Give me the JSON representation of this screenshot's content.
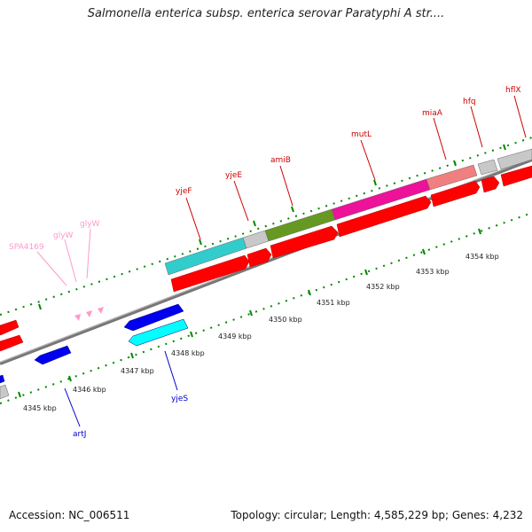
{
  "title": "Salmonella enterica subsp. enterica serovar Paratyphi A str....",
  "footer": {
    "accession": "Accession: NC_006511",
    "summary": "Topology: circular; Length: 4,585,229 bp; Genes: 4,232"
  },
  "scale_labels": [
    "4345 kbp",
    "4346 kbp",
    "4347 kbp",
    "4348 kbp",
    "4349 kbp",
    "4350 kbp",
    "4351 kbp",
    "4352 kbp",
    "4353 kbp",
    "4354 kbp"
  ],
  "gene_labels": [
    {
      "text": "SPA4169",
      "color": "#ff99cc"
    },
    {
      "text": "glyW",
      "color": "#ff99cc"
    },
    {
      "text": "glyW",
      "color": "#ff99cc"
    },
    {
      "text": "yjeF",
      "color": "#cc0000"
    },
    {
      "text": "yjeE",
      "color": "#cc0000"
    },
    {
      "text": "amiB",
      "color": "#cc0000"
    },
    {
      "text": "mutL",
      "color": "#cc0000"
    },
    {
      "text": "miaA",
      "color": "#cc0000"
    },
    {
      "text": "hfq",
      "color": "#cc0000"
    },
    {
      "text": "hflX",
      "color": "#cc0000"
    },
    {
      "text": "yjeS",
      "color": "#0000cc"
    },
    {
      "text": "artJ",
      "color": "#0000cc"
    }
  ],
  "colors": {
    "cds_forward": "#ff0000",
    "cds_reverse": "#0000ff",
    "trna": "#ff99cc",
    "backbone": "#888888",
    "tick_green": "#008800",
    "cog_cyan": "#33cccc",
    "cog_gray": "#c0c0c0",
    "cog_olive": "#669922",
    "cog_magenta": "#ee1199",
    "cog_salmon": "#f08080",
    "cog_blue": "#0000ee",
    "cog_aqua": "#00ffff"
  }
}
